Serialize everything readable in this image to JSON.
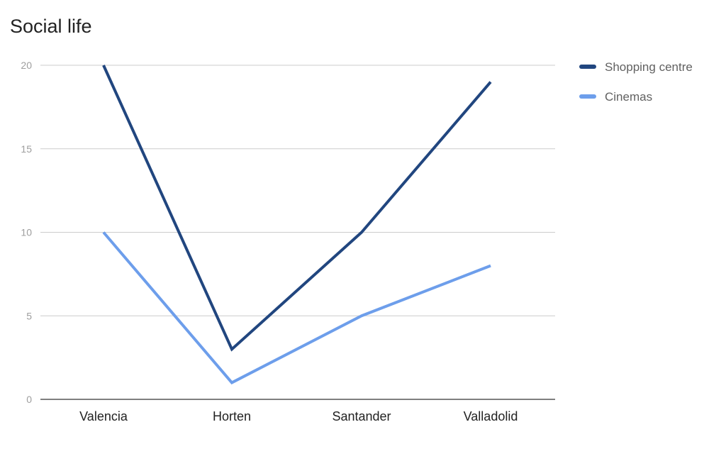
{
  "chart_data": {
    "type": "line",
    "title": "Social life",
    "xlabel": "",
    "ylabel": "",
    "categories": [
      "Valencia",
      "Horten",
      "Santander",
      "Valladolid"
    ],
    "series": [
      {
        "name": "Shopping centre",
        "values": [
          20,
          3,
          10,
          19
        ],
        "color": "#21467f"
      },
      {
        "name": "Cinemas",
        "values": [
          10,
          1,
          5,
          8
        ],
        "color": "#6d9eeb"
      }
    ],
    "ylim": [
      0,
      20
    ],
    "yticks": [
      0,
      5,
      10,
      15,
      20
    ],
    "grid": true,
    "legend_position": "right",
    "colors": {
      "grid": "#cccccc",
      "axis": "#333333",
      "tick_label": "#9e9e9e",
      "category_label": "#222222",
      "legend_label": "#616161"
    }
  }
}
